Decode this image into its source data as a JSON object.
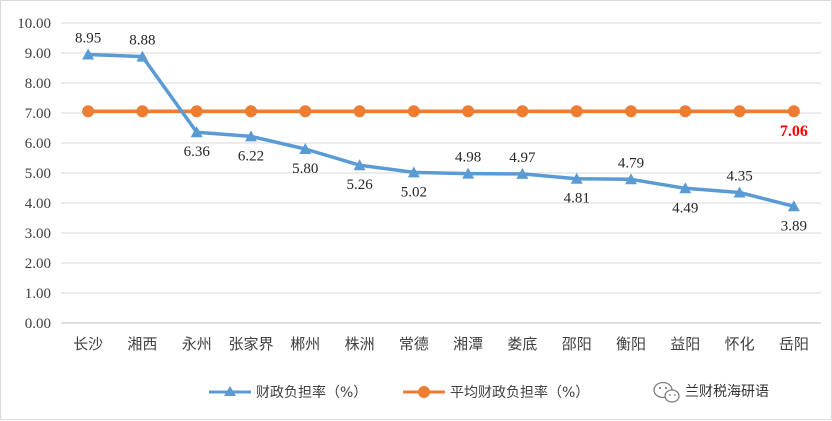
{
  "chart_data": {
    "type": "line",
    "categories": [
      "长沙",
      "湘西",
      "永州",
      "张家界",
      "郴州",
      "株洲",
      "常德",
      "湘潭",
      "娄底",
      "邵阳",
      "衡阳",
      "益阳",
      "怀化",
      "岳阳"
    ],
    "series": [
      {
        "name": "财政负担率（%）",
        "color": "#5b9bd5",
        "marker": "triangle",
        "values": [
          8.95,
          8.88,
          6.36,
          6.22,
          5.8,
          5.26,
          5.02,
          4.98,
          4.97,
          4.81,
          4.79,
          4.49,
          4.35,
          3.89
        ],
        "labels": [
          "8.95",
          "8.88",
          "6.36",
          "6.22",
          "5.80",
          "5.26",
          "5.02",
          "4.98",
          "4.97",
          "4.81",
          "4.79",
          "4.49",
          "4.35",
          "3.89"
        ]
      },
      {
        "name": "平均财政负担率（%）",
        "color": "#ed7d31",
        "marker": "circle",
        "values": [
          7.06,
          7.06,
          7.06,
          7.06,
          7.06,
          7.06,
          7.06,
          7.06,
          7.06,
          7.06,
          7.06,
          7.06,
          7.06,
          7.06
        ],
        "label_last": "7.06",
        "label_color": "#ff0000"
      }
    ],
    "ylim": [
      0,
      10
    ],
    "yticks": [
      "0.00",
      "1.00",
      "2.00",
      "3.00",
      "4.00",
      "5.00",
      "6.00",
      "7.00",
      "8.00",
      "9.00",
      "10.00"
    ],
    "grid": true,
    "legend": "bottom"
  },
  "watermark": {
    "text": "兰财税海研语",
    "icon": "wechat-icon"
  }
}
